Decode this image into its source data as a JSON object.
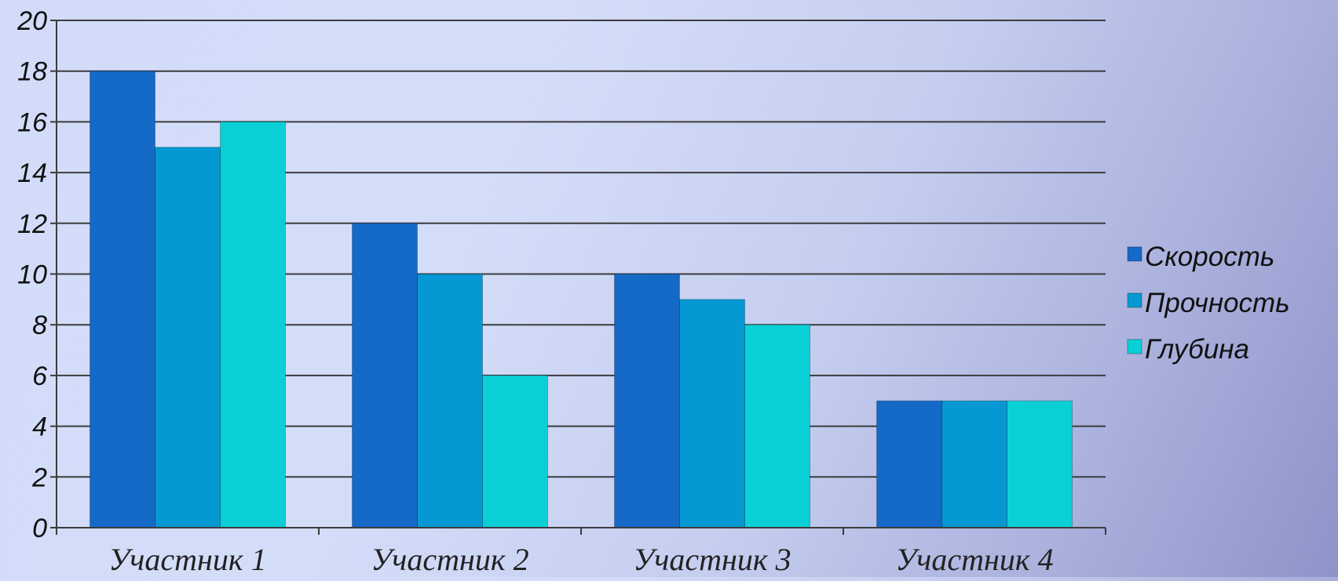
{
  "chart_data": {
    "type": "bar",
    "categories": [
      "Участник 1",
      "Участник 2",
      "Участник 3",
      "Участник 4"
    ],
    "series": [
      {
        "name": "Скорость",
        "values": [
          18,
          12,
          10,
          5
        ],
        "color": "#1569c7"
      },
      {
        "name": "Прочность",
        "values": [
          15,
          10,
          9,
          5
        ],
        "color": "#0598d2"
      },
      {
        "name": "Глубина",
        "values": [
          16,
          6,
          8,
          5
        ],
        "color": "#0bcfd6"
      }
    ],
    "yticks": [
      "0",
      "2",
      "4",
      "6",
      "8",
      "10",
      "12",
      "14",
      "16",
      "18",
      "20"
    ],
    "ylim": [
      0,
      20
    ],
    "grid": true,
    "legend_position": "right",
    "title": "",
    "xlabel": "",
    "ylabel": ""
  }
}
